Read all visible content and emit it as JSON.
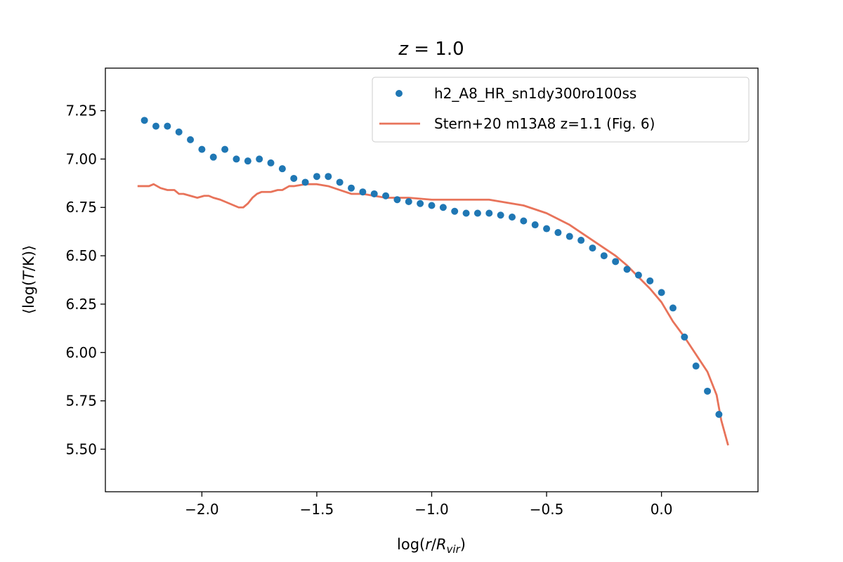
{
  "chart_data": {
    "type": "line",
    "title": "z = 1.0",
    "xlabel": "log(r/R_vir)",
    "ylabel": "⟨log(T/K)⟩",
    "xlim": [
      -2.42,
      0.42
    ],
    "ylim": [
      5.28,
      7.47
    ],
    "x_ticks": [
      -2.0,
      -1.5,
      -1.0,
      -0.5,
      0.0
    ],
    "x_tick_labels": [
      "−2.0",
      "−1.5",
      "−1.0",
      "−0.5",
      "0.0"
    ],
    "y_ticks": [
      5.5,
      5.75,
      6.0,
      6.25,
      6.5,
      6.75,
      7.0,
      7.25
    ],
    "y_tick_labels": [
      "5.50",
      "5.75",
      "6.00",
      "6.25",
      "6.50",
      "6.75",
      "7.00",
      "7.25"
    ],
    "grid": false,
    "legend_position": "top-right",
    "colors": {
      "scatter": "#1f77b4",
      "line": "#e8735a"
    },
    "series": [
      {
        "name": "h2_A8_HR_sn1dy300ro100ss",
        "kind": "scatter",
        "x": [
          -2.25,
          -2.2,
          -2.15,
          -2.1,
          -2.05,
          -2.0,
          -1.95,
          -1.9,
          -1.85,
          -1.8,
          -1.75,
          -1.7,
          -1.65,
          -1.6,
          -1.55,
          -1.5,
          -1.45,
          -1.4,
          -1.35,
          -1.3,
          -1.25,
          -1.2,
          -1.15,
          -1.1,
          -1.05,
          -1.0,
          -0.95,
          -0.9,
          -0.85,
          -0.8,
          -0.75,
          -0.7,
          -0.65,
          -0.6,
          -0.55,
          -0.5,
          -0.45,
          -0.4,
          -0.35,
          -0.3,
          -0.25,
          -0.2,
          -0.15,
          -0.1,
          -0.05,
          0.0,
          0.05,
          0.1,
          0.15,
          0.2,
          0.25
        ],
        "y": [
          7.2,
          7.17,
          7.17,
          7.14,
          7.1,
          7.05,
          7.01,
          7.05,
          7.0,
          6.99,
          7.0,
          6.98,
          6.95,
          6.9,
          6.88,
          6.91,
          6.91,
          6.88,
          6.85,
          6.83,
          6.82,
          6.81,
          6.79,
          6.78,
          6.77,
          6.76,
          6.75,
          6.73,
          6.72,
          6.72,
          6.72,
          6.71,
          6.7,
          6.68,
          6.66,
          6.64,
          6.62,
          6.6,
          6.58,
          6.54,
          6.5,
          6.47,
          6.43,
          6.4,
          6.37,
          6.31,
          6.23,
          6.08,
          5.93,
          5.8,
          5.68
        ]
      },
      {
        "name": "Stern+20 m13A8 z=1.1 (Fig. 6)",
        "kind": "line",
        "x": [
          -2.28,
          -2.25,
          -2.23,
          -2.21,
          -2.18,
          -2.15,
          -2.12,
          -2.1,
          -2.08,
          -2.05,
          -2.02,
          -1.99,
          -1.97,
          -1.95,
          -1.92,
          -1.9,
          -1.88,
          -1.86,
          -1.84,
          -1.82,
          -1.8,
          -1.78,
          -1.76,
          -1.74,
          -1.72,
          -1.7,
          -1.67,
          -1.65,
          -1.62,
          -1.6,
          -1.55,
          -1.5,
          -1.45,
          -1.4,
          -1.35,
          -1.3,
          -1.2,
          -1.1,
          -1.0,
          -0.9,
          -0.85,
          -0.8,
          -0.75,
          -0.7,
          -0.65,
          -0.6,
          -0.55,
          -0.5,
          -0.45,
          -0.4,
          -0.35,
          -0.3,
          -0.25,
          -0.2,
          -0.15,
          -0.1,
          -0.05,
          0.0,
          0.05,
          0.1,
          0.15,
          0.2,
          0.24,
          0.26,
          0.29
        ],
        "y": [
          6.86,
          6.86,
          6.86,
          6.87,
          6.85,
          6.84,
          6.84,
          6.82,
          6.82,
          6.81,
          6.8,
          6.81,
          6.81,
          6.8,
          6.79,
          6.78,
          6.77,
          6.76,
          6.75,
          6.75,
          6.77,
          6.8,
          6.82,
          6.83,
          6.83,
          6.83,
          6.84,
          6.84,
          6.86,
          6.86,
          6.87,
          6.87,
          6.86,
          6.84,
          6.82,
          6.82,
          6.8,
          6.8,
          6.79,
          6.79,
          6.79,
          6.79,
          6.79,
          6.78,
          6.77,
          6.76,
          6.74,
          6.72,
          6.69,
          6.66,
          6.62,
          6.58,
          6.54,
          6.5,
          6.45,
          6.39,
          6.33,
          6.26,
          6.16,
          6.08,
          5.99,
          5.9,
          5.78,
          5.65,
          5.52
        ]
      }
    ]
  }
}
